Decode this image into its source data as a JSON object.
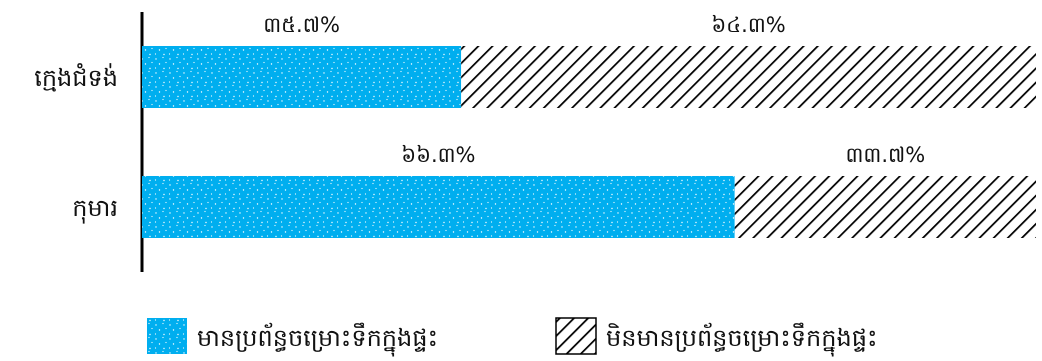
{
  "chart_data": {
    "type": "bar",
    "orientation": "horizontal",
    "stacked": true,
    "percent_stacked": true,
    "categories": [
      "ក្មេងជំទង់",
      "កុមារ"
    ],
    "series": [
      {
        "name": "មានប្រព័ន្ធចម្រោះទឹកក្នុងផ្ទះ",
        "values": [
          35.7,
          66.3
        ],
        "labels": [
          "៣៥.៧%",
          "៦៦.៣%"
        ],
        "color": "#00aeef",
        "fill": "dotted"
      },
      {
        "name": "មិនមានប្រព័ន្ធចម្រោះទឹកក្នុងផ្ទះ",
        "values": [
          64.3,
          33.7
        ],
        "labels": [
          "៦៤.៣%",
          "៣៣.៧%"
        ],
        "color": "#000000",
        "fill": "diagonal-hatch"
      }
    ],
    "xlim": [
      0,
      100
    ],
    "grid": false,
    "legend_position": "bottom"
  }
}
